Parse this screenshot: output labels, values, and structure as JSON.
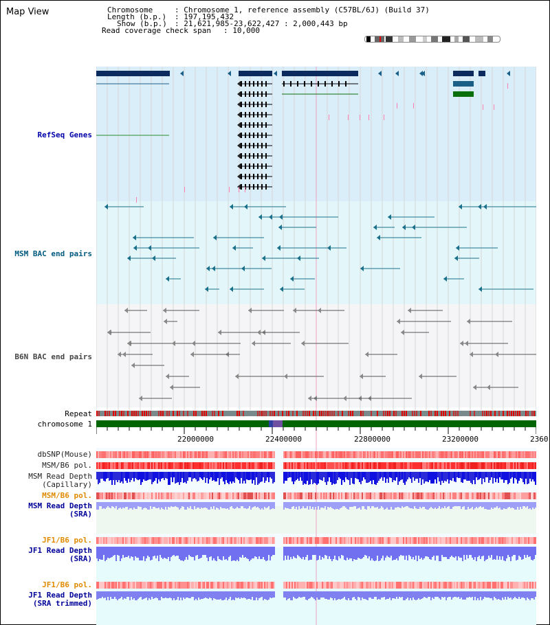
{
  "page_title": "Map View",
  "info": {
    "chromosome_key": "Chromosome",
    "chromosome_value": ": Chromosome 1, reference assembly (C57BL/6J) (Build 37)",
    "length_key": "Length (b.p.)",
    "length_value": ": 197,195,432",
    "show_key": "Show (b.p.)",
    "show_value": ": 21,621,985-23,622,427 : 2,000,443 bp",
    "coverage_key": "Read coverage check span",
    "coverage_value": ": 10,000"
  },
  "track_labels": {
    "refseq": "RefSeq Genes",
    "msm_bac": "MSM BAC end pairs",
    "b6n_bac": "B6N BAC end pairs",
    "repeat": "Repeat",
    "chromosome": "chromosome 1",
    "dbsnp": "dbSNP(Mouse)",
    "msm_b6_pol_1": "MSM/B6 pol.",
    "msm_read_depth_cap": "MSM Read Depth\n(Capillary)",
    "msm_b6_pol_2": "MSM/B6 pol.",
    "msm_read_depth_sra": "MSM Read Depth\n(SRA)",
    "jf1_b6_pol_1": "JF1/B6 pol.",
    "jf1_read_depth_sra": "JF1 Read Depth\n(SRA)",
    "jf1_b6_pol_2": "JF1/B6 pol.",
    "jf1_read_depth_trim": "JF1 Read Depth\n(SRA trimmed)"
  },
  "axis": {
    "ticks": [
      "22000000",
      "22400000",
      "22800000",
      "23200000"
    ],
    "last_tick": "2360"
  },
  "colors": {
    "refseq_bg": "#daeefa",
    "msm_bac_bg": "#e3f7fa",
    "b6n_bac_bg": "#f5f5f8",
    "gene_dark": "#0b2b5e",
    "gene_mid": "#1a5f86",
    "msm_line": "#1a6f8a",
    "b6n_line": "#555555",
    "chromosome_bar": "#006400",
    "label_refseq": "#0000aa",
    "label_msm": "#005a80",
    "label_b6n": "#444444",
    "label_orange": "#e08a00",
    "label_blue": "#000099"
  }
}
